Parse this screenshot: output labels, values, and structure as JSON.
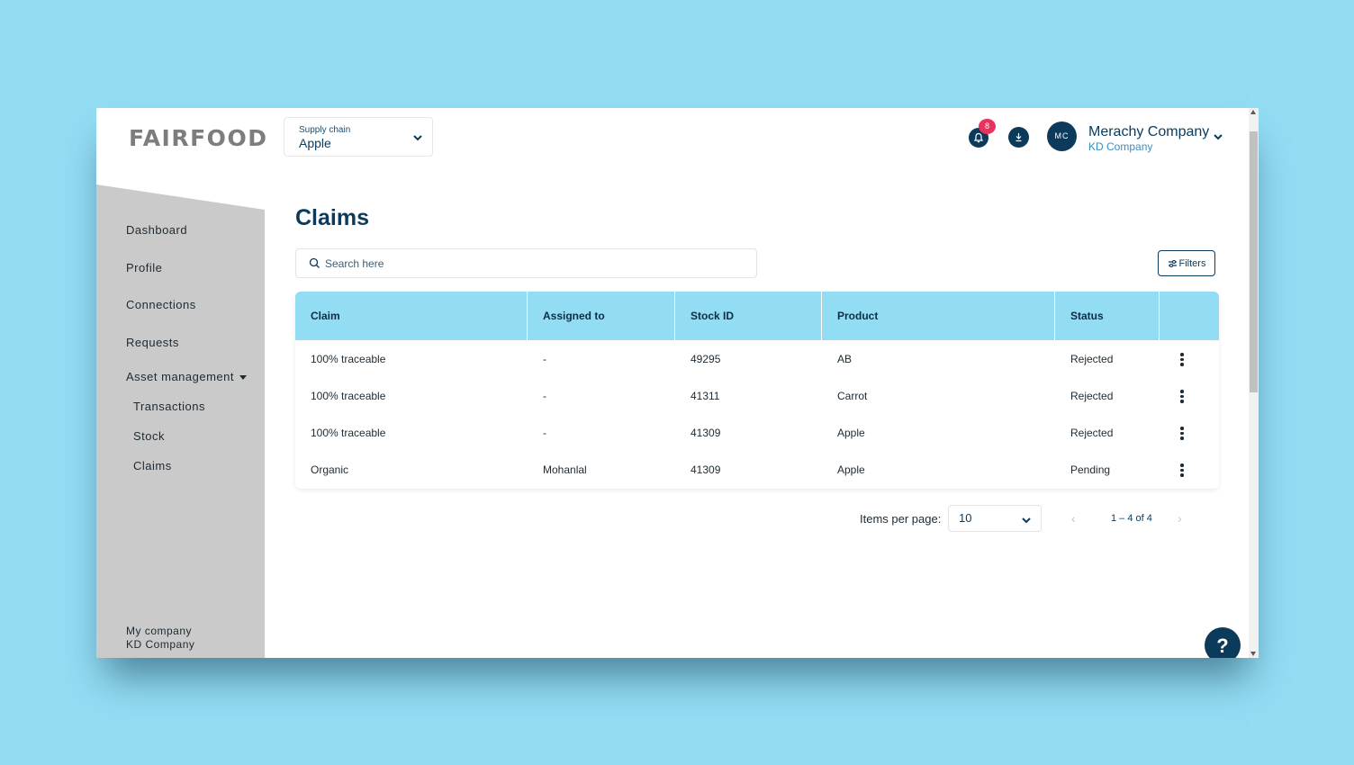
{
  "header": {
    "logo_text": "FAIRFOOD",
    "supply_chain": {
      "label": "Supply chain",
      "value": "Apple"
    },
    "notifications_count": "8",
    "user": {
      "initials": "MC",
      "name": "Merachy Company",
      "company": "KD Company"
    }
  },
  "sidebar": {
    "items": [
      {
        "label": "Dashboard"
      },
      {
        "label": "Profile"
      },
      {
        "label": "Connections"
      },
      {
        "label": "Requests"
      },
      {
        "label": "Asset management"
      }
    ],
    "sub_items": [
      {
        "label": "Transactions"
      },
      {
        "label": "Stock"
      },
      {
        "label": "Claims"
      }
    ],
    "footer": {
      "label": "My company",
      "company": "KD Company"
    }
  },
  "main": {
    "title": "Claims",
    "search": {
      "placeholder": "Search here"
    },
    "filters_label": "Filters",
    "table": {
      "columns": [
        "Claim",
        "Assigned to",
        "Stock ID",
        "Product",
        "Status"
      ],
      "rows": [
        {
          "claim": "100% traceable",
          "assigned": "-",
          "stock_id": "49295",
          "product": "AB",
          "status": "Rejected"
        },
        {
          "claim": "100% traceable",
          "assigned": "-",
          "stock_id": "41311",
          "product": "Carrot",
          "status": "Rejected"
        },
        {
          "claim": "100% traceable",
          "assigned": "-",
          "stock_id": "41309",
          "product": "Apple",
          "status": "Rejected"
        },
        {
          "claim": "Organic",
          "assigned": "Mohanlal",
          "stock_id": "41309",
          "product": "Apple",
          "status": "Pending"
        }
      ]
    },
    "pagination": {
      "items_per_page_label": "Items per page:",
      "items_per_page": "10",
      "range": "1 – 4 of 4",
      "prev": "‹",
      "next": "›"
    }
  },
  "help_label": "?",
  "colors": {
    "primary": "#0b3a5a",
    "accent": "#92dcf4",
    "badge": "#e8345c",
    "sidebar": "#cacaca"
  }
}
